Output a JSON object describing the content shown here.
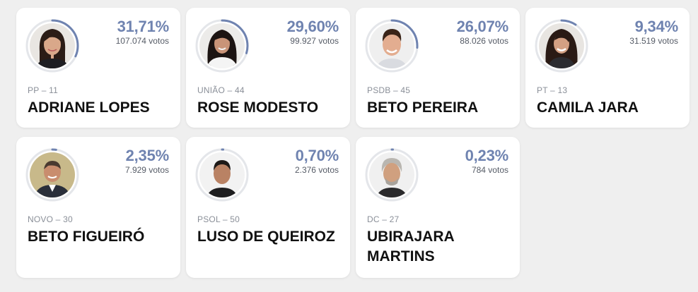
{
  "accent_color": "#6f83b0",
  "candidates": [
    {
      "name": "ADRIANE LOPES",
      "party": "PP – 11",
      "percent": "31,71%",
      "votes": "107.074 votos",
      "share": 0.3171,
      "photo": "woman-dark-hair-photo"
    },
    {
      "name": "ROSE MODESTO",
      "party": "UNIÃO – 44",
      "percent": "29,60%",
      "votes": "99.927 votos",
      "share": 0.296,
      "photo": "woman-long-dark-hair-photo"
    },
    {
      "name": "BETO PEREIRA",
      "party": "PSDB – 45",
      "percent": "26,07%",
      "votes": "88.026 votos",
      "share": 0.2607,
      "photo": "man-short-dark-hair-photo"
    },
    {
      "name": "CAMILA JARA",
      "party": "PT – 13",
      "percent": "9,34%",
      "votes": "31.519 votos",
      "share": 0.0934,
      "photo": "woman-long-hair-photo"
    },
    {
      "name": "BETO FIGUEIRÓ",
      "party": "NOVO – 30",
      "percent": "2,35%",
      "votes": "7.929 votos",
      "share": 0.0235,
      "photo": "man-suit-photo"
    },
    {
      "name": "LUSO DE QUEIROZ",
      "party": "PSOL – 50",
      "percent": "0,70%",
      "votes": "2.376 votos",
      "share": 0.007,
      "photo": "man-short-hair-photo"
    },
    {
      "name": "UBIRAJARA MARTINS",
      "party": "DC – 27",
      "percent": "0,23%",
      "votes": "784 votos",
      "share": 0.0023,
      "photo": "man-gray-hair-photo"
    }
  ]
}
